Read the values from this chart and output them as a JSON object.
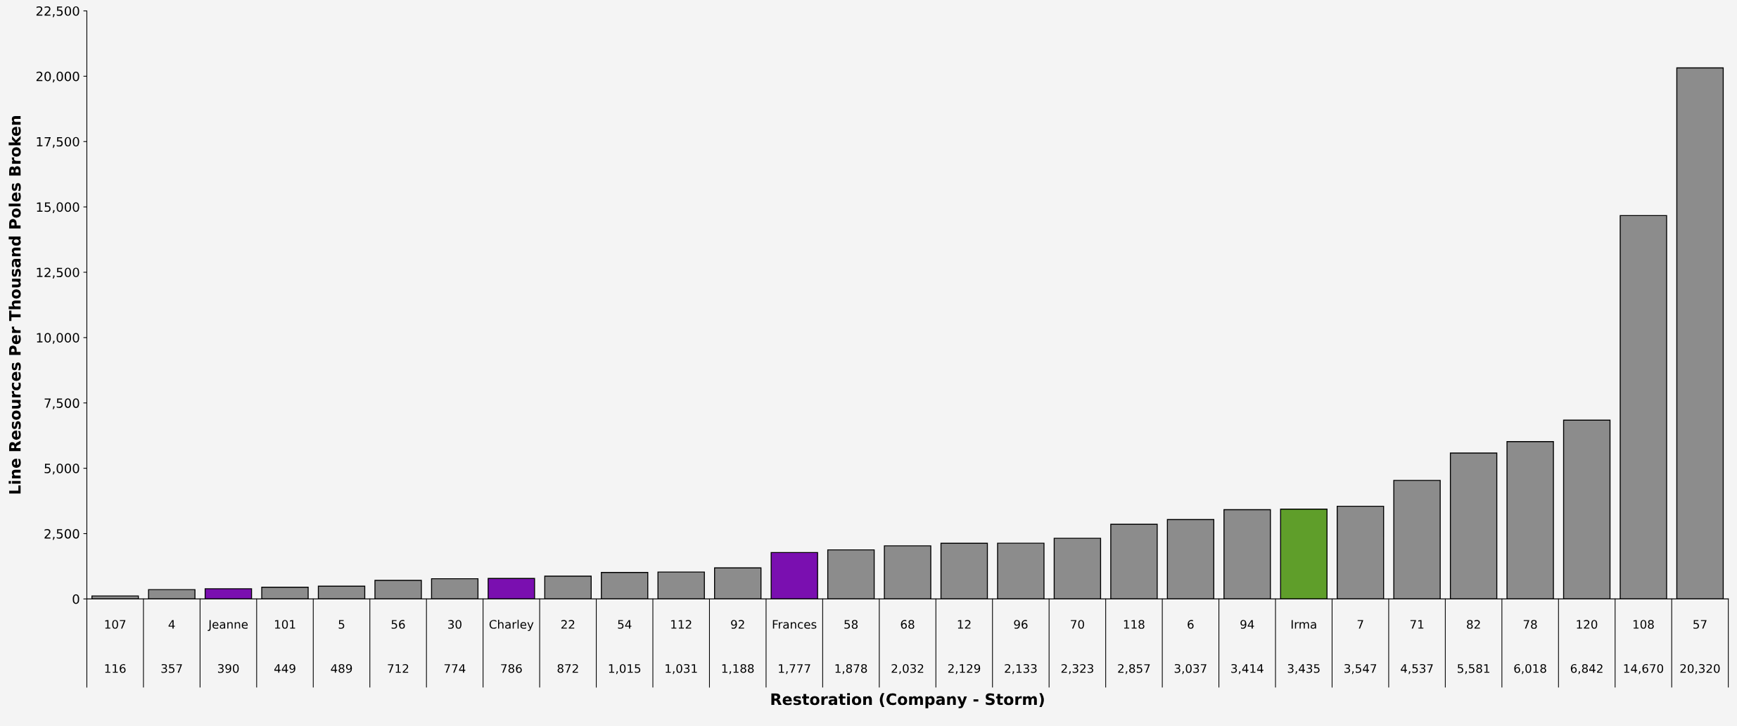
{
  "chart_data": {
    "type": "bar",
    "xlabel": "Restoration (Company - Storm)",
    "ylabel": "Line Resources Per Thousand Poles Broken",
    "categories": [
      "107",
      "4",
      "Jeanne",
      "101",
      "5",
      "56",
      "30",
      "Charley",
      "22",
      "54",
      "112",
      "92",
      "Frances",
      "58",
      "68",
      "12",
      "96",
      "70",
      "118",
      "6",
      "94",
      "Irma",
      "7",
      "71",
      "82",
      "78",
      "120",
      "108",
      "57"
    ],
    "values": [
      116,
      357,
      390,
      449,
      489,
      712,
      774,
      786,
      872,
      1015,
      1031,
      1188,
      1777,
      1878,
      2032,
      2129,
      2133,
      2323,
      2857,
      3037,
      3414,
      3435,
      3547,
      4537,
      5581,
      6018,
      6842,
      14670,
      20320
    ],
    "value_labels": [
      "116",
      "357",
      "390",
      "449",
      "489",
      "712",
      "774",
      "786",
      "872",
      "1,015",
      "1,031",
      "1,188",
      "1,777",
      "1,878",
      "2,032",
      "2,129",
      "2,133",
      "2,323",
      "2,857",
      "3,037",
      "3,414",
      "3,435",
      "3,547",
      "4,537",
      "5,581",
      "6,018",
      "6,842",
      "14,670",
      "20,320"
    ],
    "colors": [
      "#8c8c8c",
      "#8c8c8c",
      "#7a0fb0",
      "#8c8c8c",
      "#8c8c8c",
      "#8c8c8c",
      "#8c8c8c",
      "#7a0fb0",
      "#8c8c8c",
      "#8c8c8c",
      "#8c8c8c",
      "#8c8c8c",
      "#7a0fb0",
      "#8c8c8c",
      "#8c8c8c",
      "#8c8c8c",
      "#8c8c8c",
      "#8c8c8c",
      "#8c8c8c",
      "#8c8c8c",
      "#8c8c8c",
      "#5f9e2a",
      "#8c8c8c",
      "#8c8c8c",
      "#8c8c8c",
      "#8c8c8c",
      "#8c8c8c",
      "#8c8c8c",
      "#8c8c8c"
    ],
    "ylim": [
      0,
      22500
    ],
    "yticks": [
      0,
      {
        "value": 2500,
        "label": "2,500"
      },
      {
        "value": 5000,
        "label": "5,000"
      },
      {
        "value": 7500,
        "label": "7,500"
      },
      {
        "value": 10000,
        "label": "10,000"
      },
      {
        "value": 12500,
        "label": "12,500"
      },
      {
        "value": 15000,
        "label": "15,000"
      },
      {
        "value": 17500,
        "label": "17,500"
      },
      {
        "value": 20000,
        "label": "20,000"
      },
      {
        "value": 22500,
        "label": "22,500"
      }
    ],
    "grid": false,
    "legend": false
  }
}
